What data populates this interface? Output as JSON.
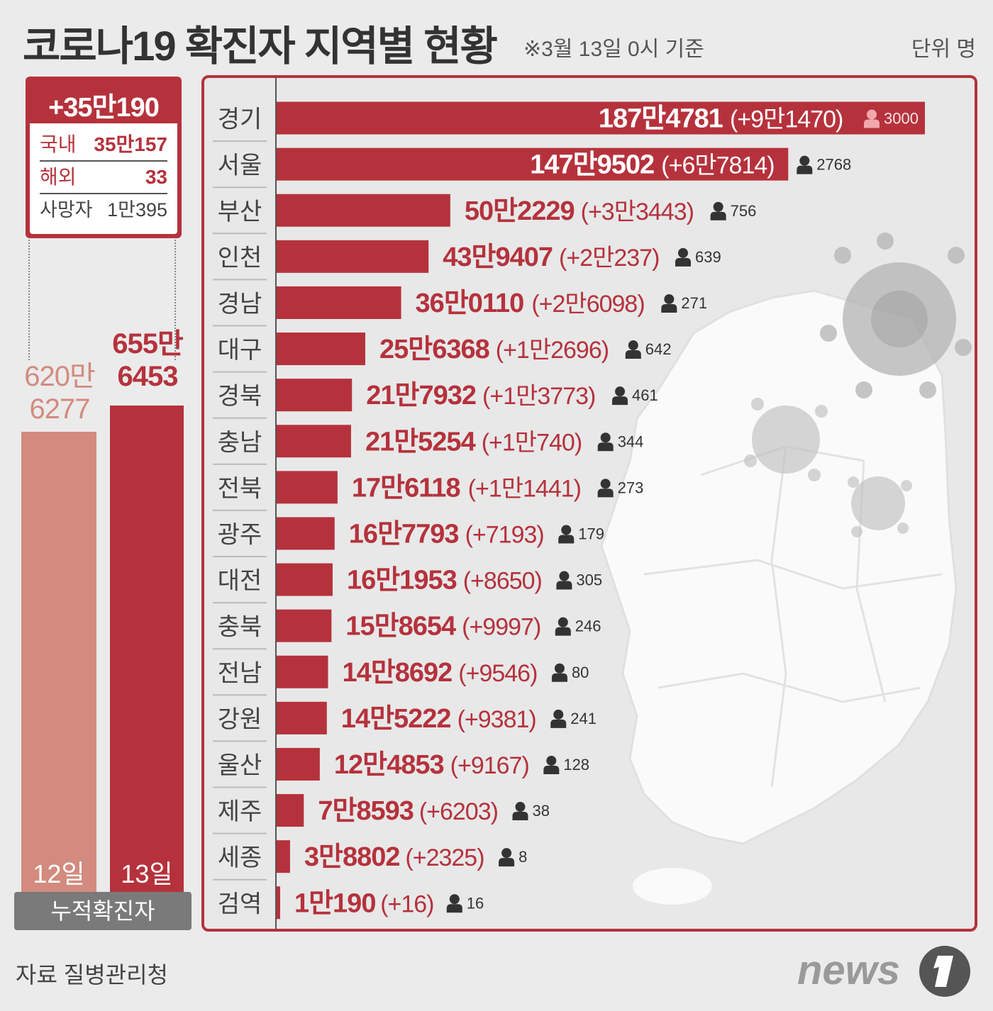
{
  "header": {
    "title": "코로나19 확진자 지역별 현황",
    "subtitle": "※3월 13일 0시 기준",
    "unit": "단위 명"
  },
  "summary": {
    "total_new": "+35만190",
    "domestic_label": "국내",
    "domestic_value": "35만157",
    "overseas_label": "해외",
    "overseas_value": "33",
    "deaths_label": "사망자",
    "deaths_value": "1만395"
  },
  "cumulative": {
    "footer_label": "누적확진자",
    "bars": [
      {
        "day": "12일",
        "value": 6206277,
        "label_line1": "620만",
        "label_line2": "6277",
        "color": "#d28b7e"
      },
      {
        "day": "13일",
        "value": 6556453,
        "label_line1": "655만",
        "label_line2": "6453",
        "color": "#b5323c"
      }
    ]
  },
  "colors": {
    "bar": "#b5323c",
    "text_red": "#b5323c",
    "person_icon": "#333333",
    "person_icon_light": "#f2a7ad"
  },
  "icons": [
    "person-icon",
    "virus-icon",
    "korea-map",
    "news1-logo"
  ],
  "chart_data": {
    "type": "bar",
    "orientation": "horizontal",
    "categories": [
      "경기",
      "서울",
      "부산",
      "인천",
      "경남",
      "대구",
      "경북",
      "충남",
      "전북",
      "광주",
      "대전",
      "충북",
      "전남",
      "강원",
      "울산",
      "제주",
      "세종",
      "검역"
    ],
    "values": [
      1874781,
      1479502,
      502229,
      439407,
      360110,
      256368,
      217932,
      215254,
      176118,
      167793,
      161953,
      158654,
      148692,
      145222,
      124853,
      78593,
      38802,
      10190
    ],
    "value_labels": [
      "187만4781",
      "147만9502",
      "50만2229",
      "43만9407",
      "36만0110",
      "25만6368",
      "21만7932",
      "21만5254",
      "17만6118",
      "16만7793",
      "16만1953",
      "15만8654",
      "14만8692",
      "14만5222",
      "12만4853",
      "7만8593",
      "3만8802",
      "1만190"
    ],
    "new_labels": [
      "(+9만1470)",
      "(+6만7814)",
      "(+3만3443)",
      "(+2만237)",
      "(+2만6098)",
      "(+1만2696)",
      "(+1만3773)",
      "(+1만740)",
      "(+1만1441)",
      "(+7193)",
      "(+8650)",
      "(+9997)",
      "(+9546)",
      "(+9381)",
      "(+9167)",
      "(+6203)",
      "(+2325)",
      "(+16)"
    ],
    "deaths": [
      "3000",
      "2768",
      "756",
      "639",
      "271",
      "642",
      "461",
      "344",
      "273",
      "179",
      "305",
      "246",
      "80",
      "241",
      "128",
      "38",
      "8",
      "16"
    ]
  },
  "footer": {
    "source": "자료  질병관리청",
    "logo_text": "news"
  }
}
